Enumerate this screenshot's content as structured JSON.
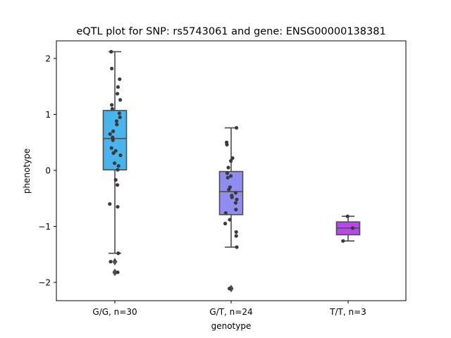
{
  "chart_data": {
    "type": "box",
    "title": "eQTL plot for SNP: rs5743061 and gene: ENSG00000138381",
    "xlabel": "genotype",
    "ylabel": "phenotype",
    "ylim": [
      -2.32,
      2.32
    ],
    "yticks": [
      2,
      1,
      0,
      -1,
      -2
    ],
    "ytick_labels": [
      "2",
      "1",
      "0",
      "−1",
      "−2"
    ],
    "grid": false,
    "groups": [
      {
        "label": "G/G, n=30",
        "color": "#4ab4ec",
        "q1": 0.01,
        "median": 0.57,
        "q3": 1.07,
        "whisker_low": -1.48,
        "whisker_high": 2.12,
        "outliers": [
          -1.63,
          -1.82
        ],
        "points": [
          {
            "jitter": -0.13,
            "y": 2.12
          },
          {
            "jitter": -0.11,
            "y": 1.82
          },
          {
            "jitter": 0.17,
            "y": 1.63
          },
          {
            "jitter": 0.11,
            "y": 1.49
          },
          {
            "jitter": 0.09,
            "y": 1.37
          },
          {
            "jitter": 0.19,
            "y": 1.26
          },
          {
            "jitter": -0.11,
            "y": 1.17
          },
          {
            "jitter": -0.09,
            "y": 1.1
          },
          {
            "jitter": 0.16,
            "y": 1.02
          },
          {
            "jitter": 0.18,
            "y": 0.95
          },
          {
            "jitter": 0.06,
            "y": 0.88
          },
          {
            "jitter": 0.07,
            "y": 0.82
          },
          {
            "jitter": -0.06,
            "y": 0.7
          },
          {
            "jitter": -0.17,
            "y": 0.65
          },
          {
            "jitter": -0.08,
            "y": 0.59
          },
          {
            "jitter": -0.07,
            "y": 0.54
          },
          {
            "jitter": -0.12,
            "y": 0.4
          },
          {
            "jitter": 0.03,
            "y": 0.35
          },
          {
            "jitter": -0.05,
            "y": 0.31
          },
          {
            "jitter": 0.2,
            "y": 0.27
          },
          {
            "jitter": -0.01,
            "y": 0.13
          },
          {
            "jitter": 0.13,
            "y": 0.08
          },
          {
            "jitter": 0.1,
            "y": 0.01
          },
          {
            "jitter": 0.03,
            "y": -0.17
          },
          {
            "jitter": 0.09,
            "y": -0.26
          },
          {
            "jitter": -0.18,
            "y": -0.6
          },
          {
            "jitter": 0.1,
            "y": -0.65
          },
          {
            "jitter": 0.12,
            "y": -1.48
          },
          {
            "jitter": -0.15,
            "y": -1.63
          },
          {
            "jitter": 0.1,
            "y": -1.82
          }
        ]
      },
      {
        "label": "G/T, n=24",
        "color": "#8f8cf2",
        "q1": -0.79,
        "median": -0.38,
        "q3": -0.02,
        "whisker_low": -1.37,
        "whisker_high": 0.76,
        "outliers": [
          -2.11
        ],
        "points": [
          {
            "jitter": 0.19,
            "y": 0.76
          },
          {
            "jitter": -0.16,
            "y": 0.5
          },
          {
            "jitter": -0.15,
            "y": 0.46
          },
          {
            "jitter": 0.05,
            "y": 0.22
          },
          {
            "jitter": -0.01,
            "y": 0.17
          },
          {
            "jitter": -0.1,
            "y": 0.05
          },
          {
            "jitter": -0.14,
            "y": -0.05
          },
          {
            "jitter": -0.12,
            "y": -0.13
          },
          {
            "jitter": -0.01,
            "y": -0.1
          },
          {
            "jitter": -0.04,
            "y": -0.3
          },
          {
            "jitter": -0.08,
            "y": -0.34
          },
          {
            "jitter": 0.16,
            "y": -0.4
          },
          {
            "jitter": 0.02,
            "y": -0.45
          },
          {
            "jitter": 0.03,
            "y": -0.48
          },
          {
            "jitter": 0.2,
            "y": -0.52
          },
          {
            "jitter": 0.16,
            "y": -0.58
          },
          {
            "jitter": 0.17,
            "y": -0.7
          },
          {
            "jitter": -0.19,
            "y": -0.76
          },
          {
            "jitter": -0.05,
            "y": -0.88
          },
          {
            "jitter": -0.21,
            "y": -0.95
          },
          {
            "jitter": 0.18,
            "y": -1.1
          },
          {
            "jitter": 0.18,
            "y": -1.17
          },
          {
            "jitter": 0.2,
            "y": -1.37
          },
          {
            "jitter": -0.06,
            "y": -2.11
          }
        ]
      },
      {
        "label": "T/T, n=3",
        "color": "#b44ae6",
        "q1": -1.15,
        "median": -1.03,
        "q3": -0.92,
        "whisker_low": -1.26,
        "whisker_high": -0.82,
        "outliers": [],
        "points": [
          {
            "jitter": -0.02,
            "y": -0.82
          },
          {
            "jitter": 0.16,
            "y": -1.03
          },
          {
            "jitter": -0.18,
            "y": -1.26
          }
        ]
      }
    ]
  }
}
